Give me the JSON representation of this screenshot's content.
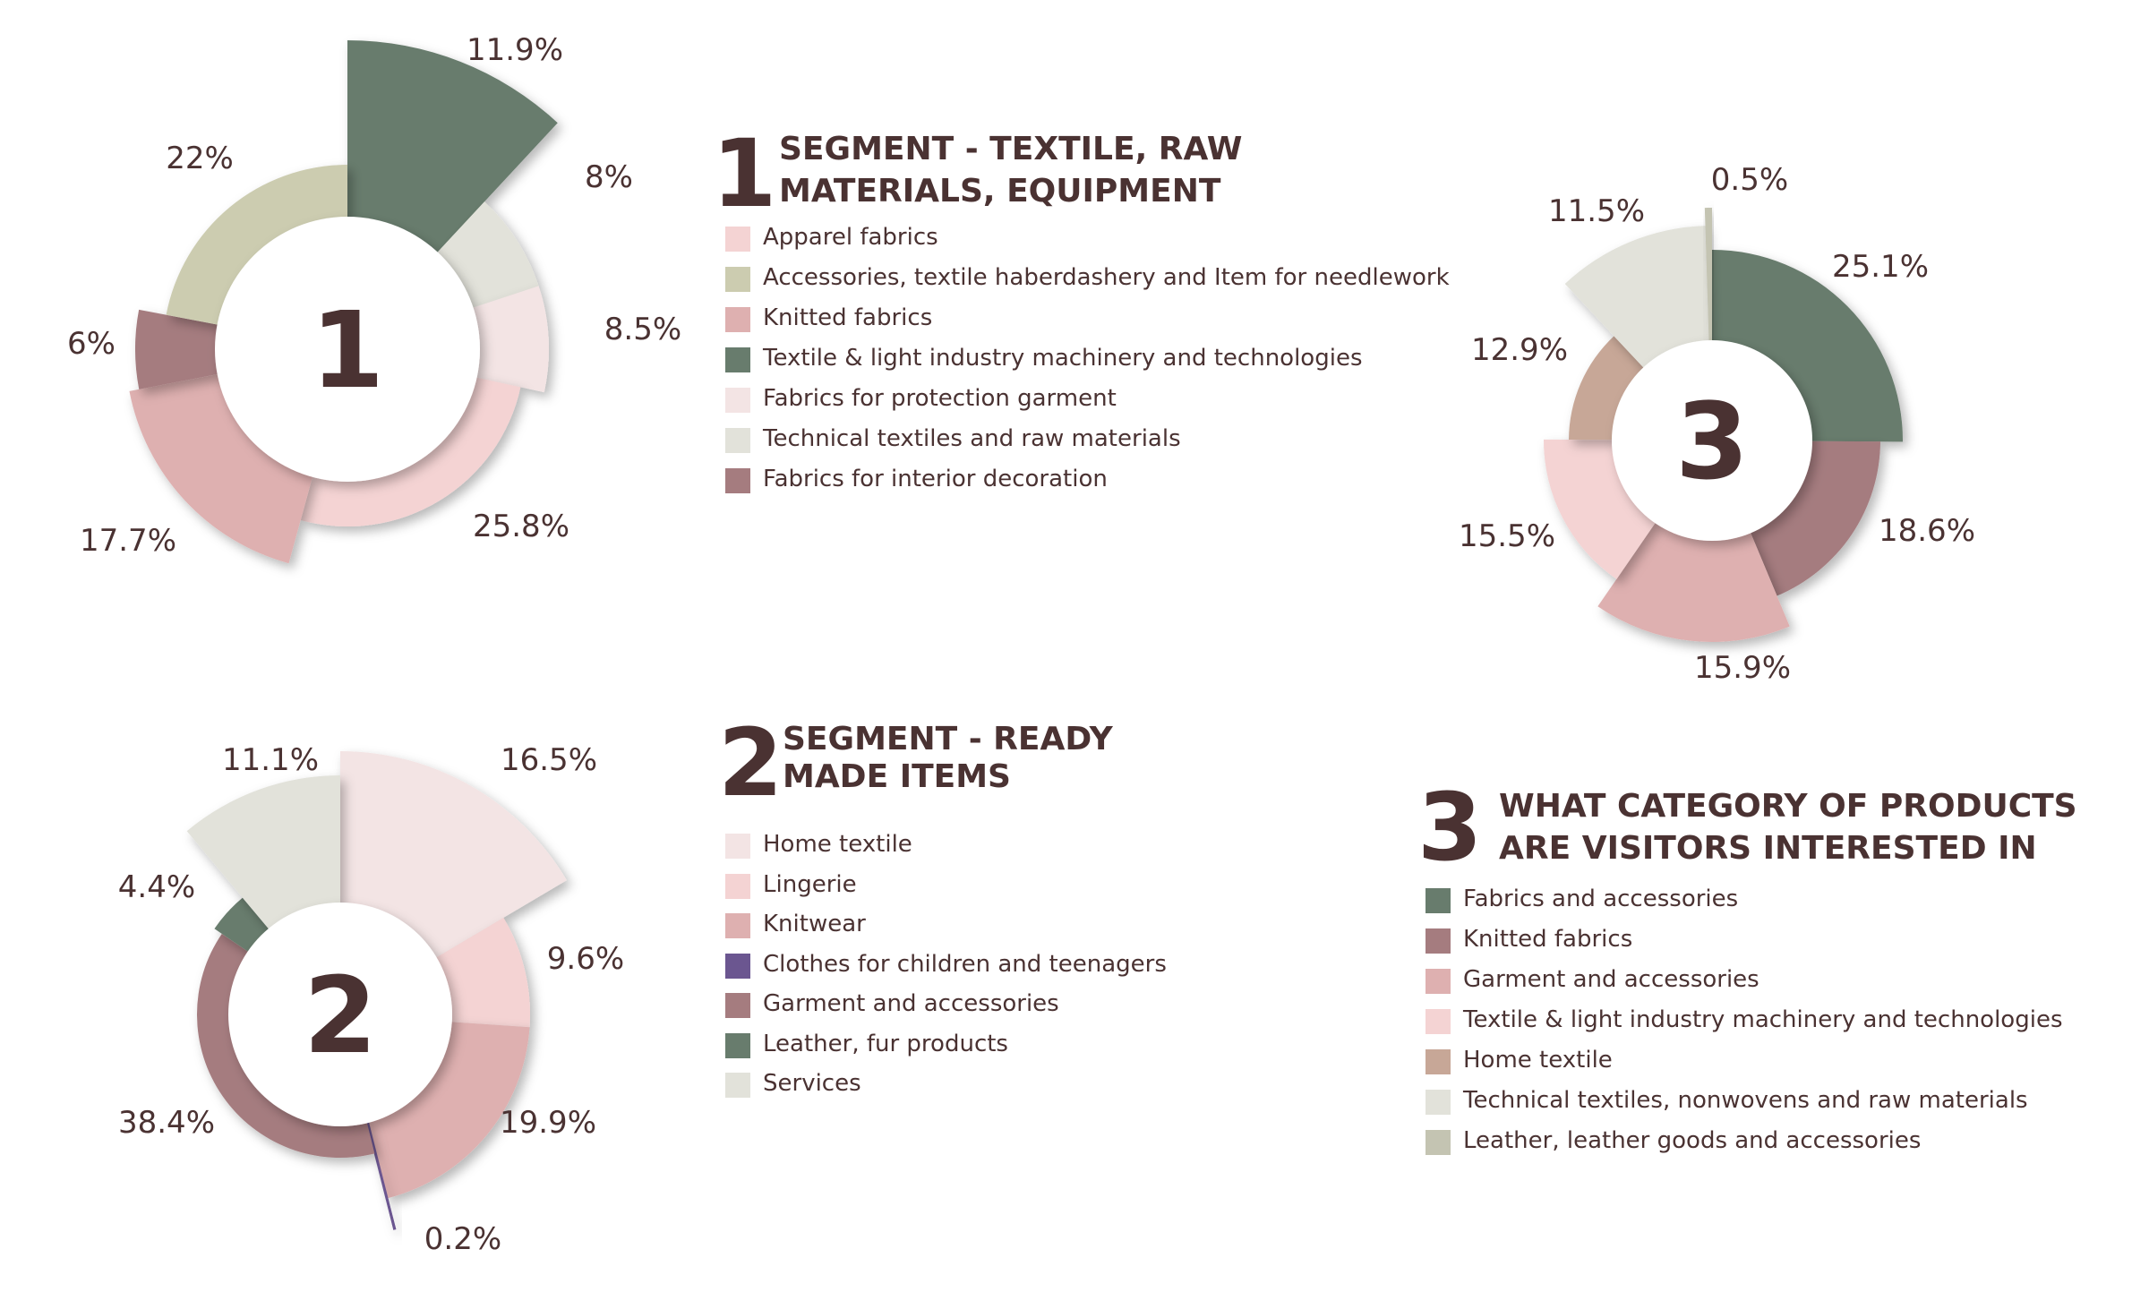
{
  "charts": [
    {
      "chart_number": "1",
      "chart_type": "polar-area donut (variable radius sectors)",
      "title": "SEGMENT - TEXTILE, RAW MATERIALS, EQUIPMENT",
      "title_lines": [
        "SEGMENT - TEXTILE, RAW",
        "MATERIALS, EQUIPMENT"
      ],
      "legend": [
        {
          "label": "Apparel fabrics",
          "color": "#f4d3d3"
        },
        {
          "label": "Accessories, textile haberdashery and Item for needlework",
          "color": "#ccccb0"
        },
        {
          "label": "Knitted fabrics",
          "color": "#deb0b0"
        },
        {
          "label": "Textile & light industry machinery and technologies",
          "color": "#687c6d"
        },
        {
          "label": "Fabrics for protection garment",
          "color": "#f3e4e4"
        },
        {
          "label": "Technical textiles and raw materials",
          "color": "#e2e2da"
        },
        {
          "label": "Fabrics for interior decoration",
          "color": "#a57c7f"
        }
      ]
    },
    {
      "chart_number": "2",
      "chart_type": "polar-area donut (variable radius sectors)",
      "title": "SEGMENT - READY MADE ITEMS",
      "title_lines": [
        "SEGMENT - READY",
        "MADE ITEMS"
      ],
      "legend": [
        {
          "label": "Home textile",
          "color": "#f3e4e4"
        },
        {
          "label": "Lingerie",
          "color": "#f4d3d3"
        },
        {
          "label": "Knitwear",
          "color": "#deb0b0"
        },
        {
          "label": "Clothes for children and teenagers",
          "color": "#6b5690"
        },
        {
          "label": "Garment and accessories",
          "color": "#a57c7f"
        },
        {
          "label": "Leather, fur products",
          "color": "#687c6d"
        },
        {
          "label": "Services",
          "color": "#e2e2da"
        }
      ]
    },
    {
      "chart_number": "3",
      "chart_type": "polar-area donut (variable radius sectors)",
      "title": "WHAT CATEGORY OF PRODUCTS ARE VISITORS INTERESTED IN",
      "title_lines": [
        "WHAT CATEGORY OF PRODUCTS",
        "ARE VISITORS INTERESTED IN"
      ],
      "legend": [
        {
          "label": "Fabrics and accessories",
          "color": "#687c6d"
        },
        {
          "label": "Knitted fabrics",
          "color": "#a57c7f"
        },
        {
          "label": "Garment and accessories",
          "color": "#deb0b0"
        },
        {
          "label": "Textile & light industry machinery and technologies",
          "color": "#f4d3d3"
        },
        {
          "label": "Home textile",
          "color": "#c7a797"
        },
        {
          "label": "Technical textiles, nonwovens and raw materials",
          "color": "#e2e2da"
        },
        {
          "label": "Leather, leather goods and accessories",
          "color": "#c4c4b2"
        }
      ]
    }
  ],
  "chart_data": [
    {
      "type": "pie",
      "center_label": "1",
      "title": "SEGMENT - TEXTILE, RAW MATERIALS, EQUIPMENT",
      "series": [
        {
          "name": "Textile & light industry machinery and technologies",
          "value": 11.9,
          "label": "11.9%",
          "color": "#687c6d"
        },
        {
          "name": "Technical textiles and raw materials",
          "value": 8,
          "label": "8%",
          "color": "#e2e2da"
        },
        {
          "name": "Fabrics for protection garment",
          "value": 8.5,
          "label": "8.5%",
          "color": "#f3e4e4"
        },
        {
          "name": "Apparel fabrics",
          "value": 25.8,
          "label": "25.8%",
          "color": "#f4d3d3"
        },
        {
          "name": "Knitted fabrics",
          "value": 17.7,
          "label": "17.7%",
          "color": "#deb0b0"
        },
        {
          "name": "Fabrics for interior decoration",
          "value": 6,
          "label": "6%",
          "color": "#a57c7f"
        },
        {
          "name": "Accessories, textile haberdashery and Item for needlework",
          "value": 22,
          "label": "22%",
          "color": "#ccccb0"
        }
      ]
    },
    {
      "type": "pie",
      "center_label": "2",
      "title": "SEGMENT - READY MADE ITEMS",
      "series": [
        {
          "name": "Home textile",
          "value": 16.5,
          "label": "16.5%",
          "color": "#f3e4e4"
        },
        {
          "name": "Lingerie",
          "value": 9.6,
          "label": "9.6%",
          "color": "#f4d3d3"
        },
        {
          "name": "Knitwear",
          "value": 19.9,
          "label": "19.9%",
          "color": "#deb0b0"
        },
        {
          "name": "Clothes for children and teenagers",
          "value": 0.2,
          "label": "0.2%",
          "color": "#6b5690"
        },
        {
          "name": "Garment and accessories",
          "value": 38.4,
          "label": "38.4%",
          "color": "#a57c7f"
        },
        {
          "name": "Leather, fur products",
          "value": 4.4,
          "label": "4.4%",
          "color": "#687c6d"
        },
        {
          "name": "Services",
          "value": 11.1,
          "label": "11.1%",
          "color": "#e2e2da"
        }
      ]
    },
    {
      "type": "pie",
      "center_label": "3",
      "title": "WHAT CATEGORY OF PRODUCTS ARE VISITORS INTERESTED IN",
      "series": [
        {
          "name": "Fabrics and accessories",
          "value": 25.1,
          "label": "25.1%",
          "color": "#687c6d"
        },
        {
          "name": "Knitted fabrics",
          "value": 18.6,
          "label": "18.6%",
          "color": "#a57c7f"
        },
        {
          "name": "Garment and accessories",
          "value": 15.9,
          "label": "15.9%",
          "color": "#deb0b0"
        },
        {
          "name": "Textile & light industry machinery and technologies",
          "value": 15.5,
          "label": "15.5%",
          "color": "#f4d3d3"
        },
        {
          "name": "Home textile",
          "value": 12.9,
          "label": "12.9%",
          "color": "#c7a797"
        },
        {
          "name": "Technical textiles, nonwovens and raw materials",
          "value": 11.5,
          "label": "11.5%",
          "color": "#e2e2da"
        },
        {
          "name": "Leather, leather goods and accessories",
          "value": 0.5,
          "label": "0.5%",
          "color": "#c4c4b2"
        }
      ]
    }
  ]
}
